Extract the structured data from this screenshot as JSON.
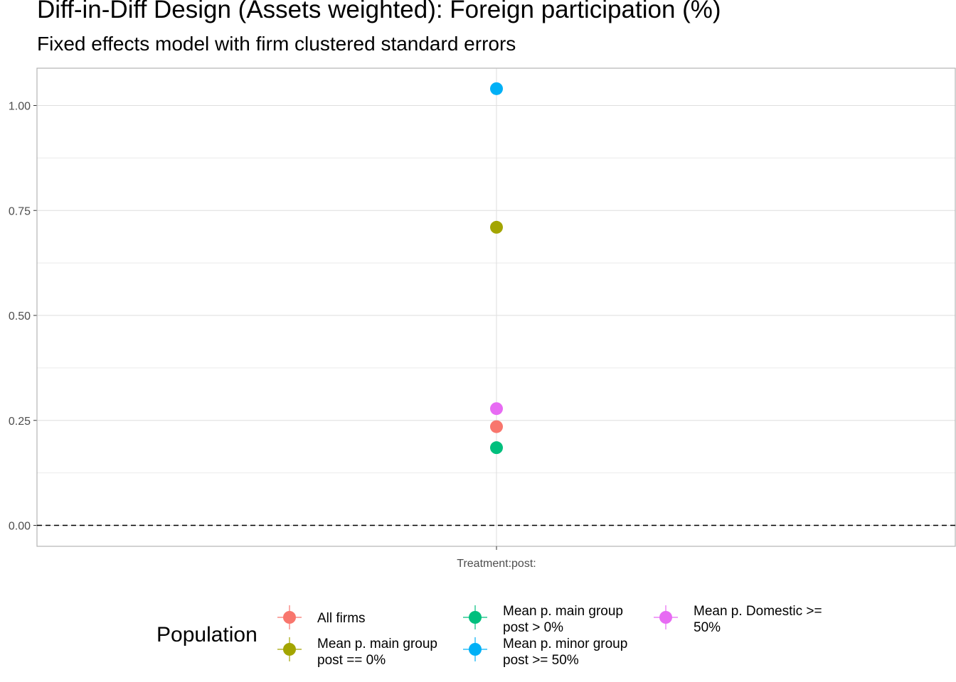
{
  "chart_data": {
    "type": "scatter",
    "title": "Diff-in-Diff Design (Assets weighted): Foreign participation (%)",
    "subtitle": "Fixed effects model with firm clustered standard errors",
    "xlabel": "",
    "ylabel": "",
    "categories": [
      "Treatment:post:"
    ],
    "ylim": [
      -0.05,
      1.09
    ],
    "yticks": [
      0.0,
      0.25,
      0.5,
      0.75,
      1.0
    ],
    "ytick_labels": [
      "0.00",
      "0.25",
      "0.50",
      "0.75",
      "1.00"
    ],
    "reference_line": {
      "y": 0,
      "style": "dashed"
    },
    "grid": true,
    "legend": {
      "title": "Population",
      "placement": "bottom"
    },
    "series": [
      {
        "name": "All firms",
        "color": "#F8766D",
        "values": [
          0.235
        ]
      },
      {
        "name": "Mean p. main group post == 0%",
        "label_lines": [
          "Mean p. main group",
          "post == 0%"
        ],
        "color": "#A3A500",
        "values": [
          0.71
        ]
      },
      {
        "name": "Mean p. main group post > 0%",
        "label_lines": [
          "Mean p. main group",
          "post > 0%"
        ],
        "color": "#00BF7D",
        "values": [
          0.185
        ]
      },
      {
        "name": "Mean p. minor group post >= 50%",
        "label_lines": [
          "Mean p. minor group",
          "post >= 50%"
        ],
        "color": "#00B0F6",
        "values": [
          1.04
        ]
      },
      {
        "name": "Mean p. Domestic >= 50%",
        "label_lines": [
          "Mean p. Domestic >=",
          "50%"
        ],
        "color": "#E76BF3",
        "values": [
          0.278
        ]
      }
    ]
  }
}
